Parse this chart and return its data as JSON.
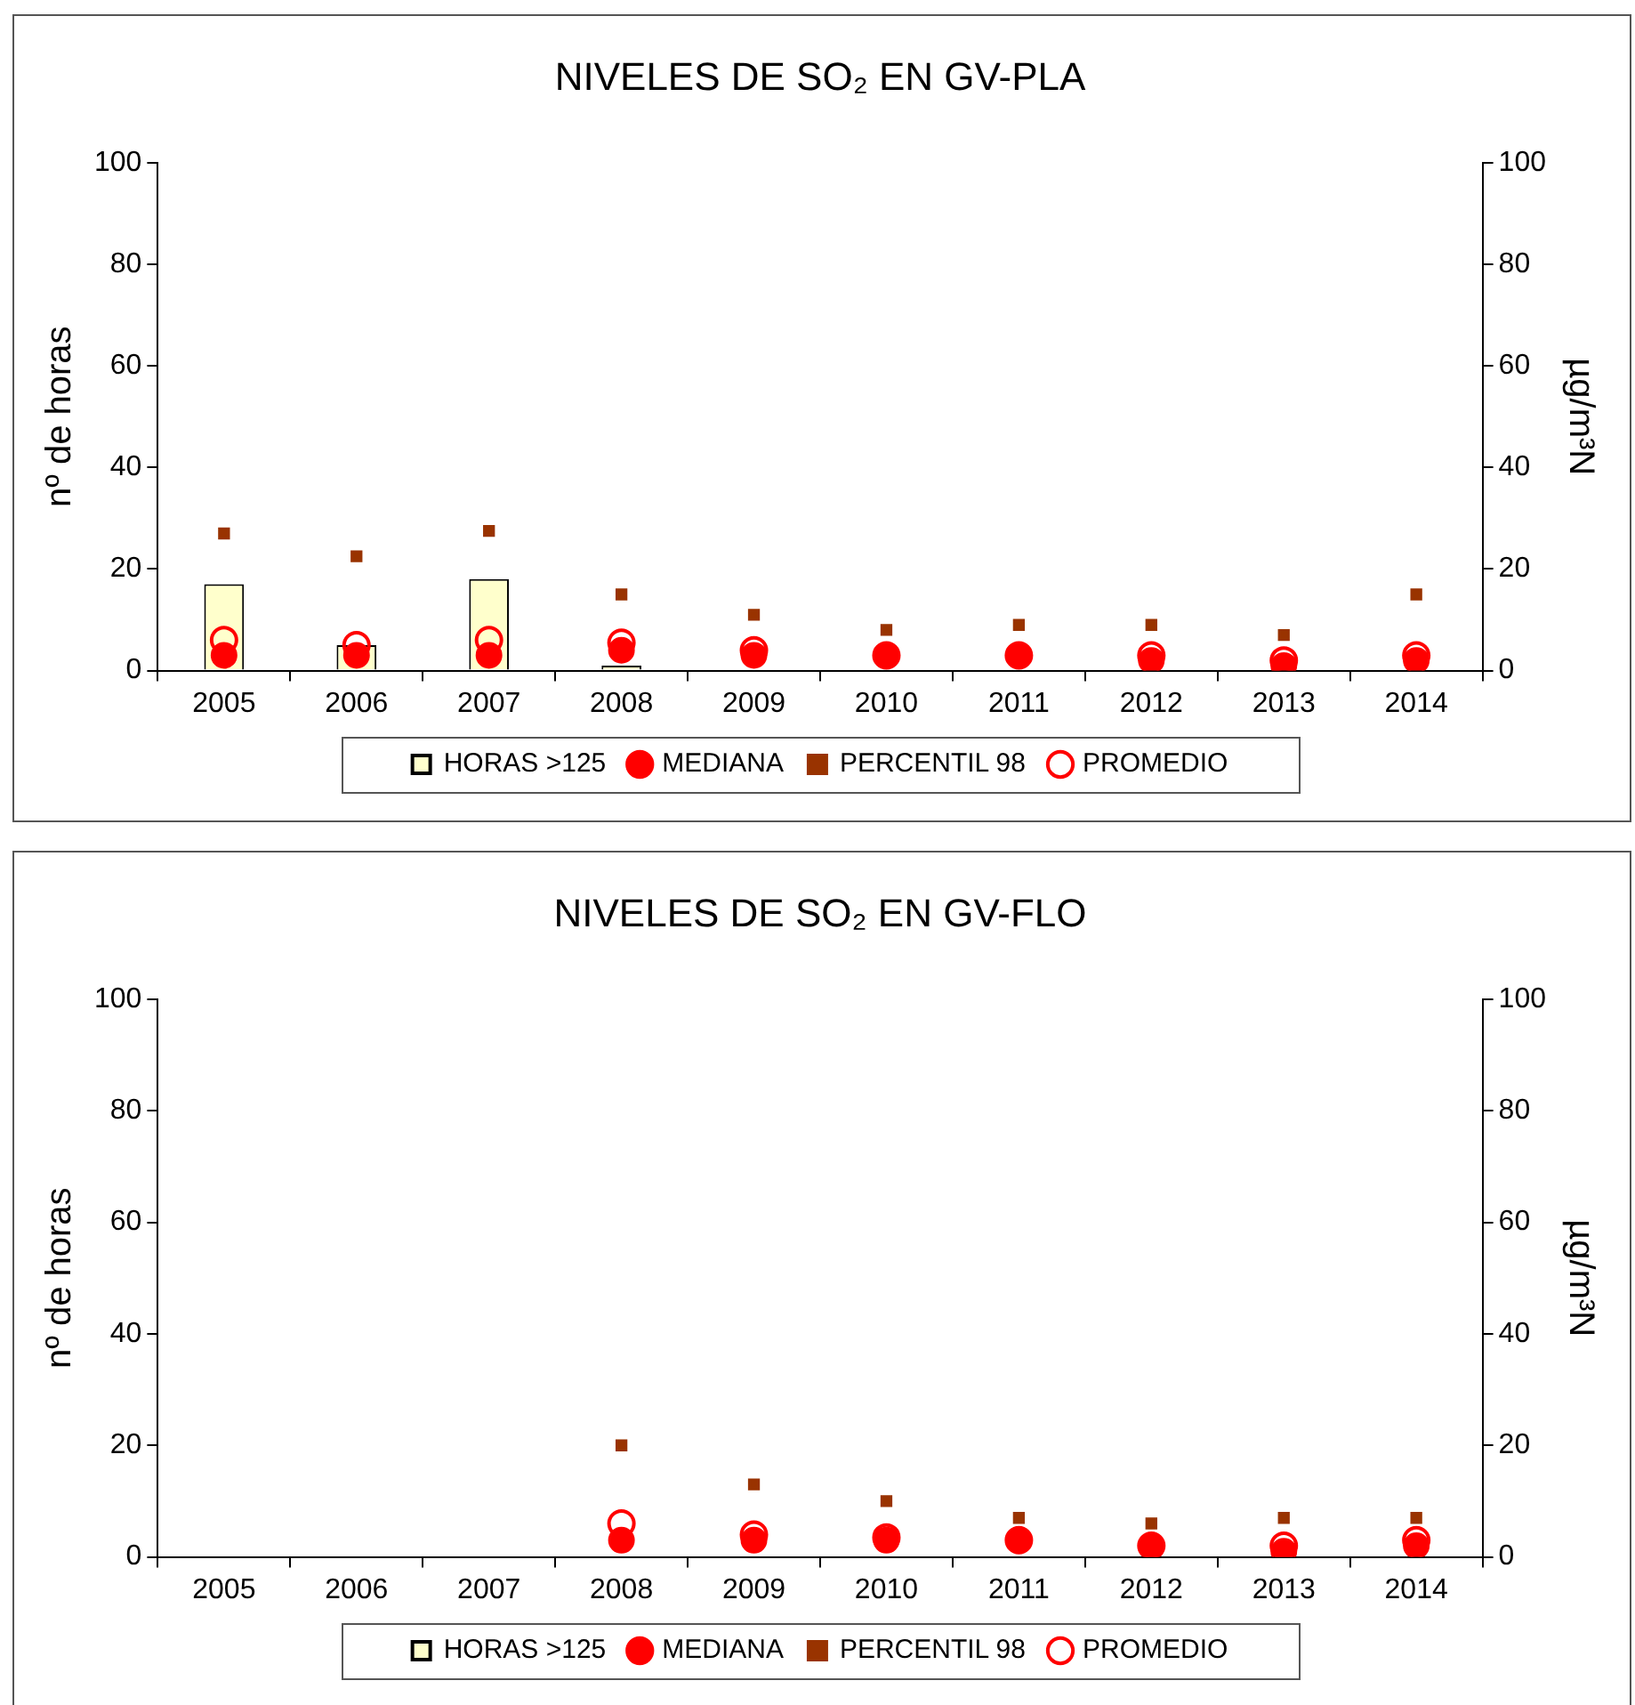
{
  "chart_data": [
    {
      "type": "bar",
      "title": "NIVELES DE SO₂ EN GV-PLA",
      "ylabel": "nº de horas",
      "y2label": "µg/m³N",
      "categories": [
        "2005",
        "2006",
        "2007",
        "2008",
        "2009",
        "2010",
        "2011",
        "2012",
        "2013",
        "2014"
      ],
      "ylim": [
        0,
        100
      ],
      "yticks": [
        0,
        20,
        40,
        60,
        80,
        100
      ],
      "y2lim": [
        0,
        100
      ],
      "y2ticks": [
        0,
        20,
        40,
        60,
        80,
        100
      ],
      "grid": false,
      "legend": "bottom",
      "series": [
        {
          "name": "HORAS >125",
          "type": "bar",
          "color": "#ffffcc",
          "values": [
            17,
            5,
            18,
            1,
            null,
            null,
            null,
            null,
            null,
            null
          ]
        },
        {
          "name": "MEDIANA",
          "type": "scatter",
          "axis": "y2",
          "marker": "circle",
          "color": "#ff0000",
          "values": [
            3,
            3,
            3,
            4,
            3,
            3,
            3,
            2,
            1,
            2
          ]
        },
        {
          "name": "PERCENTIL 98",
          "type": "scatter",
          "axis": "y2",
          "marker": "square",
          "color": "#993300",
          "values": [
            27,
            22.5,
            27.5,
            15,
            11,
            8,
            9,
            9,
            7,
            15
          ]
        },
        {
          "name": "PROMEDIO",
          "type": "scatter",
          "axis": "y2",
          "marker": "circle-open",
          "color": "#ff0000",
          "values": [
            6,
            5,
            6,
            5.5,
            4,
            3,
            3,
            3,
            2,
            3
          ]
        }
      ]
    },
    {
      "type": "bar",
      "title": "NIVELES DE SO₂ EN GV-FLO",
      "ylabel": "nº de horas",
      "y2label": "µg/m³N",
      "categories": [
        "2005",
        "2006",
        "2007",
        "2008",
        "2009",
        "2010",
        "2011",
        "2012",
        "2013",
        "2014"
      ],
      "ylim": [
        0,
        100
      ],
      "yticks": [
        0,
        20,
        40,
        60,
        80,
        100
      ],
      "y2lim": [
        0,
        100
      ],
      "y2ticks": [
        0,
        20,
        40,
        60,
        80,
        100
      ],
      "grid": false,
      "legend": "bottom",
      "series": [
        {
          "name": "HORAS >125",
          "type": "bar",
          "color": "#ffffcc",
          "values": [
            null,
            null,
            null,
            null,
            null,
            null,
            null,
            null,
            null,
            null
          ]
        },
        {
          "name": "MEDIANA",
          "type": "scatter",
          "axis": "y2",
          "marker": "circle",
          "color": "#ff0000",
          "values": [
            null,
            null,
            null,
            3,
            3,
            3,
            3,
            2,
            1,
            2
          ]
        },
        {
          "name": "PERCENTIL 98",
          "type": "scatter",
          "axis": "y2",
          "marker": "square",
          "color": "#993300",
          "values": [
            null,
            null,
            null,
            20,
            13,
            10,
            7,
            6,
            7,
            7
          ]
        },
        {
          "name": "PROMEDIO",
          "type": "scatter",
          "axis": "y2",
          "marker": "circle-open",
          "color": "#ff0000",
          "values": [
            null,
            null,
            null,
            6,
            4,
            3.5,
            3,
            2,
            2,
            3
          ]
        }
      ]
    }
  ]
}
